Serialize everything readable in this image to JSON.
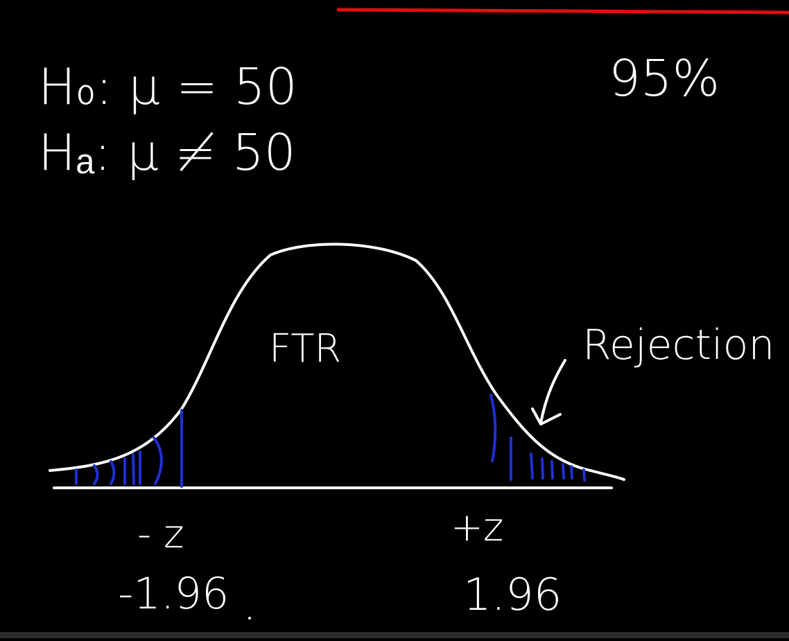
{
  "hypotheses": {
    "null": "H₀: μ = 50",
    "alternative": "Hₐ: μ ≠ 50"
  },
  "confidence_level": "95%",
  "regions": {
    "center_label": "FTR",
    "tail_label": "Rejection"
  },
  "critical_values": {
    "left_symbol": "- z",
    "left_value": "-1.96",
    "right_symbol": "+z",
    "right_value": "1.96"
  },
  "colors": {
    "background": "#000000",
    "ink": "#ffffff",
    "shading": "#1f2fd6",
    "accent_line": "#e01010"
  }
}
